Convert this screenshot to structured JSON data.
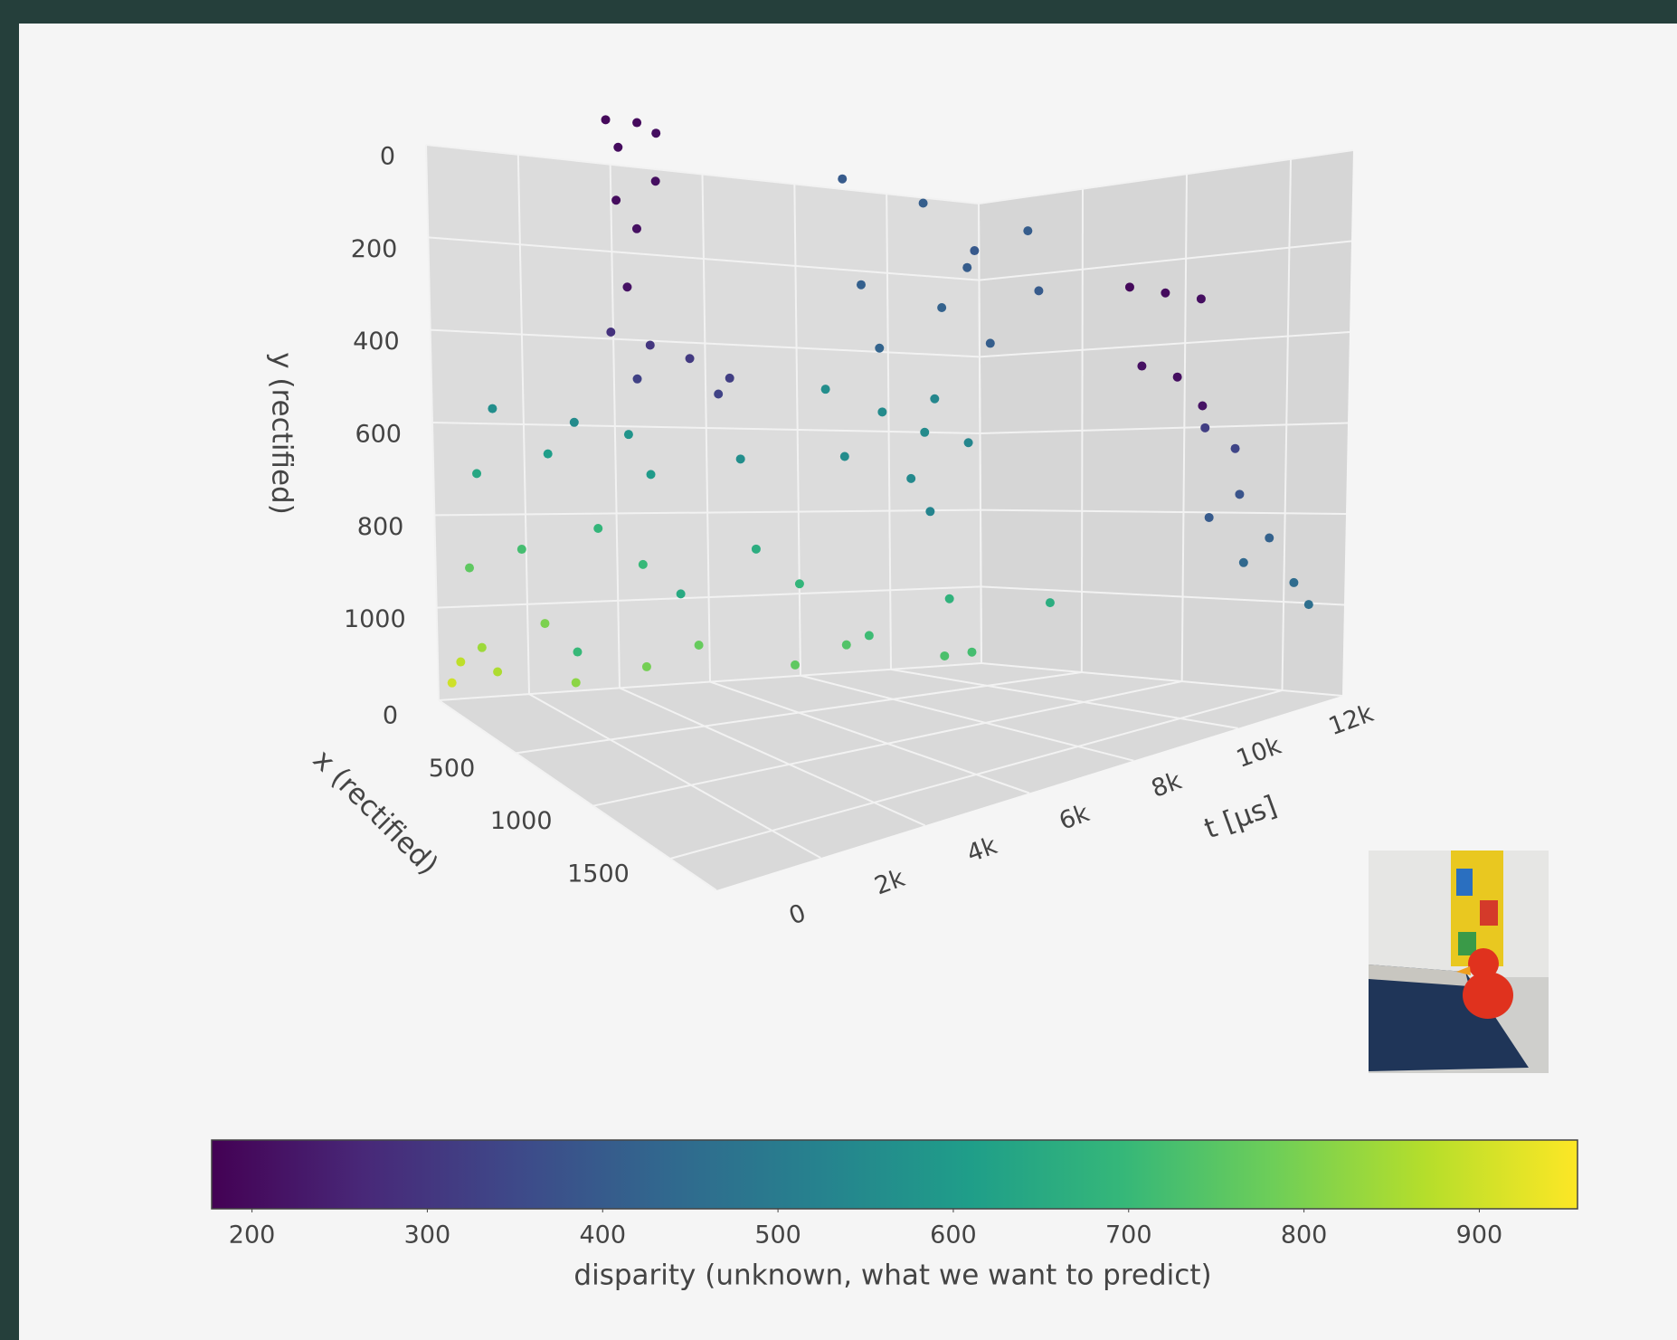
{
  "chart_data": {
    "type": "scatter3d",
    "xaxis_title": "x (rectified)",
    "yaxis_title": "y (rectified)",
    "taxis_title": "t [μs]",
    "xlim": [
      0,
      1800
    ],
    "ylim": [
      0,
      1200
    ],
    "tlim": [
      0,
      12000
    ],
    "xticks": [
      0,
      500,
      1000,
      1500
    ],
    "yticks": [
      0,
      200,
      400,
      600,
      800,
      1000
    ],
    "tticks": [
      0,
      {
        "value": 2000,
        "label": "2k"
      },
      {
        "value": 4000,
        "label": "4k"
      },
      {
        "value": 6000,
        "label": "6k"
      },
      {
        "value": 8000,
        "label": "8k"
      },
      {
        "value": 10000,
        "label": "10k"
      },
      {
        "value": 12000,
        "label": "12k"
      }
    ],
    "grid": true,
    "x": [
      1020,
      1080,
      1150,
      1220,
      1050,
      1130,
      1200,
      1100,
      950,
      1100,
      1250,
      1400,
      1050,
      1300,
      60,
      90,
      120,
      200,
      250,
      150,
      300,
      200,
      350,
      250,
      400,
      300,
      100,
      200,
      300,
      150,
      400,
      250,
      100,
      200,
      350,
      150,
      450,
      120,
      250,
      600,
      650,
      500,
      550,
      700,
      400,
      500,
      600,
      450,
      550,
      650,
      500,
      350,
      200,
      300,
      250,
      350,
      220,
      320,
      280,
      380,
      240,
      330,
      800,
      950,
      1100,
      850,
      1000,
      1100,
      1200,
      1300,
      1400,
      1500,
      1600,
      1300,
      1450,
      1650
    ],
    "y": [
      10,
      60,
      20,
      40,
      150,
      200,
      120,
      300,
      380,
      400,
      420,
      450,
      460,
      480,
      1150,
      1100,
      1120,
      1050,
      1000,
      1150,
      1100,
      1080,
      1120,
      1100,
      1130,
      1140,
      900,
      850,
      800,
      900,
      850,
      950,
      700,
      650,
      600,
      700,
      650,
      560,
      580,
      1000,
      900,
      1050,
      980,
      1000,
      500,
      550,
      520,
      650,
      700,
      620,
      780,
      600,
      0,
      50,
      150,
      100,
      250,
      300,
      380,
      250,
      400,
      200,
      260,
      280,
      300,
      450,
      480,
      550,
      600,
      650,
      750,
      850,
      950,
      800,
      900,
      1000
    ],
    "t": [
      300,
      350,
      500,
      650,
      400,
      550,
      700,
      450,
      600,
      900,
      1200,
      1500,
      800,
      1600,
      100,
      200,
      900,
      300,
      1500,
      2500,
      3500,
      5000,
      6500,
      8000,
      9500,
      10500,
      400,
      1200,
      2500,
      4000,
      5500,
      7000,
      600,
      1800,
      3000,
      4200,
      5000,
      900,
      2200,
      1000,
      3000,
      7500,
      9000,
      10500,
      7000,
      7800,
      8500,
      7200,
      8200,
      9000,
      8800,
      9300,
      8200,
      9500,
      10800,
      11500,
      8500,
      9800,
      11000,
      11600,
      8800,
      10300,
      11700,
      11800,
      11900,
      11750,
      11850,
      11950,
      11600,
      11800,
      11500,
      11700,
      11800,
      11300,
      11400,
      11900
    ],
    "disparity": [
      195,
      200,
      198,
      205,
      202,
      210,
      206,
      215,
      290,
      300,
      310,
      320,
      330,
      335,
      900,
      880,
      860,
      840,
      800,
      820,
      790,
      770,
      760,
      740,
      730,
      720,
      760,
      720,
      690,
      700,
      660,
      690,
      640,
      610,
      580,
      600,
      560,
      560,
      550,
      700,
      650,
      710,
      680,
      660,
      560,
      550,
      540,
      555,
      545,
      535,
      530,
      550,
      400,
      410,
      395,
      405,
      415,
      420,
      410,
      400,
      425,
      405,
      195,
      200,
      205,
      210,
      205,
      215,
      320,
      340,
      380,
      420,
      450,
      400,
      440,
      460
    ],
    "colorbar": {
      "title": "disparity (unknown, what we want to predict)",
      "colorscale": "viridis",
      "lim": [
        177,
        956
      ],
      "ticks": [
        200,
        300,
        400,
        500,
        600,
        700,
        800,
        900
      ]
    }
  }
}
